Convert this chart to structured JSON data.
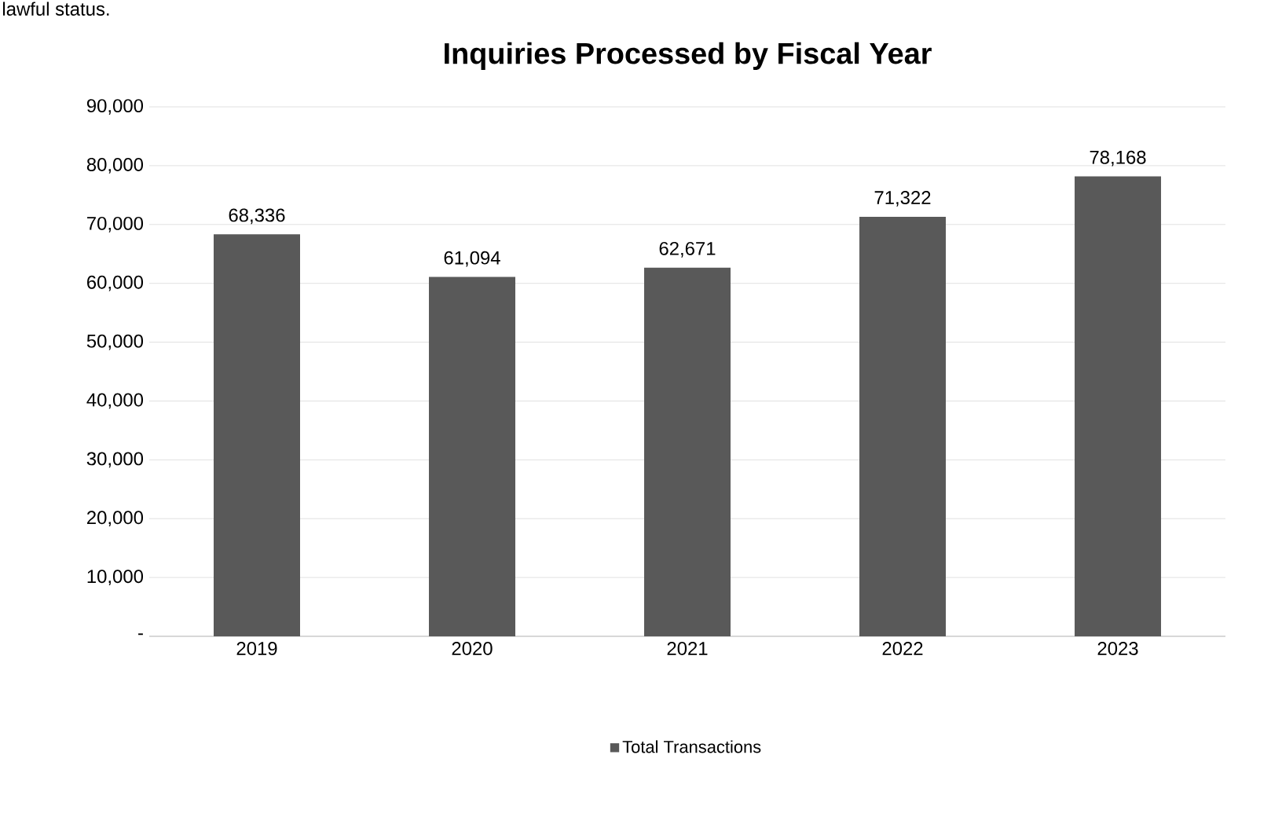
{
  "chart_data": {
    "type": "bar",
    "title": "Inquiries Processed by Fiscal Year",
    "annotations": [
      "lawful status."
    ],
    "categories": [
      "2019",
      "2020",
      "2021",
      "2022",
      "2023"
    ],
    "series": [
      {
        "name": "Total Transactions",
        "color": "#595959",
        "values": [
          68336,
          61094,
          62671,
          71322,
          78168
        ],
        "value_labels": [
          "68,336",
          "61,094",
          "62,671",
          "71,322",
          "78,168"
        ]
      }
    ],
    "ylim": [
      0,
      90000
    ],
    "yticks": [
      {
        "value": 0,
        "label": "-"
      },
      {
        "value": 10000,
        "label": "10,000"
      },
      {
        "value": 20000,
        "label": "20,000"
      },
      {
        "value": 30000,
        "label": "30,000"
      },
      {
        "value": 40000,
        "label": "40,000"
      },
      {
        "value": 50000,
        "label": "50,000"
      },
      {
        "value": 60000,
        "label": "60,000"
      },
      {
        "value": 70000,
        "label": "70,000"
      },
      {
        "value": 80000,
        "label": "80,000"
      },
      {
        "value": 90000,
        "label": "90,000"
      }
    ],
    "grid": "y",
    "legend": "bottom"
  }
}
